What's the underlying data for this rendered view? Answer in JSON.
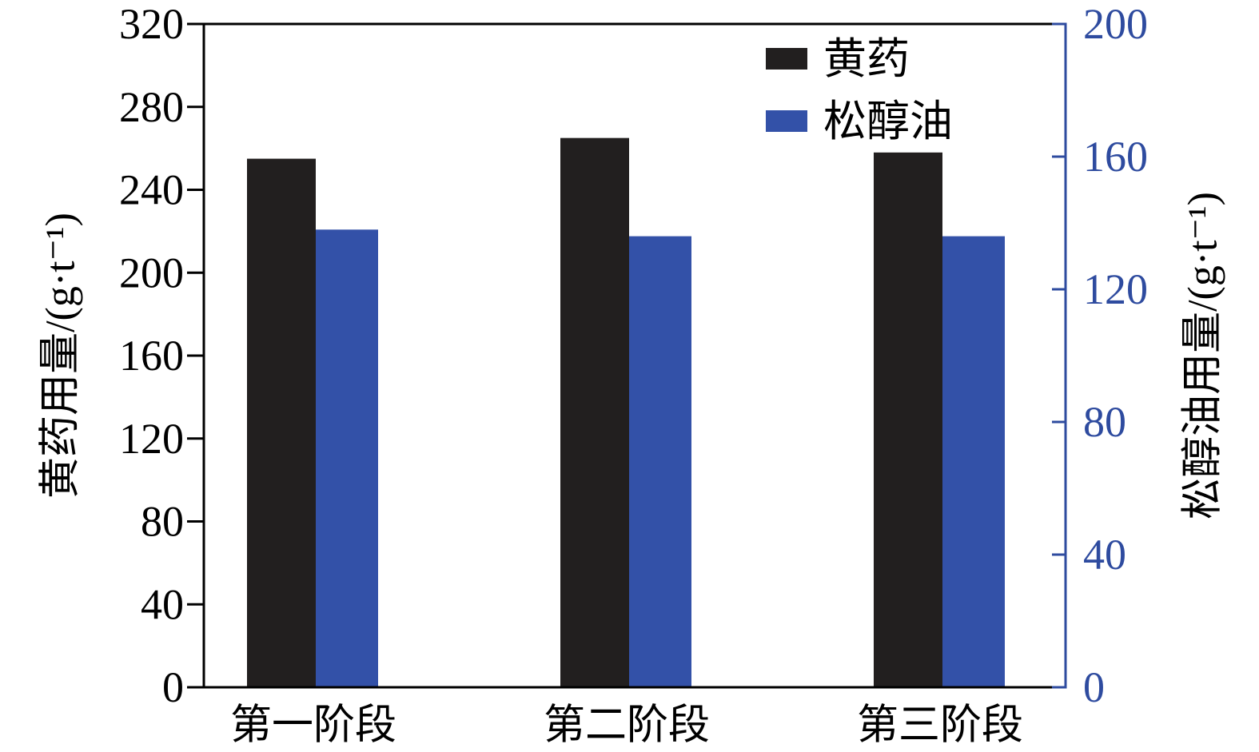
{
  "chart_data": {
    "type": "bar",
    "categories": [
      "第一阶段",
      "第二阶段",
      "第三阶段"
    ],
    "series": [
      {
        "name": "黄药",
        "secondary_axis": false,
        "values": [
          255,
          265,
          258
        ],
        "color": "#221f1f"
      },
      {
        "name": "松醇油",
        "secondary_axis": true,
        "values": [
          138,
          136,
          136
        ],
        "color": "#3351a8"
      }
    ],
    "ylabel": "黄药用量/(g·t⁻¹)",
    "ylim": [
      0,
      320
    ],
    "yticks": [
      0,
      40,
      80,
      120,
      160,
      200,
      240,
      280,
      320
    ],
    "y2label": "松醇油用量/(g·t⁻¹)",
    "y2lim": [
      0,
      200
    ],
    "y2ticks": [
      0,
      40,
      80,
      120,
      160,
      200
    ],
    "y2_color": "#2e4b9f",
    "axis_color": "#000000",
    "legend": "top-right",
    "grid": false
  }
}
